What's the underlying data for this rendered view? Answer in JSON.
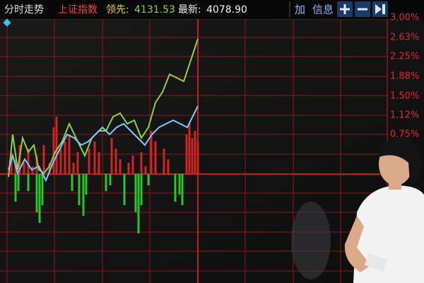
{
  "header": {
    "tab": "分时走势",
    "index_name": "上证指数",
    "lead_label": "领先:",
    "lead_value": "4131.53",
    "latest_label": "最新:",
    "latest_value": "4078.90",
    "buttons": [
      "加",
      "信息"
    ]
  },
  "axis_labels": [
    "3.00%",
    "2.63%",
    "2.25%",
    "1.88%",
    "1.50%",
    "1.12%",
    "0.75%"
  ]
}
